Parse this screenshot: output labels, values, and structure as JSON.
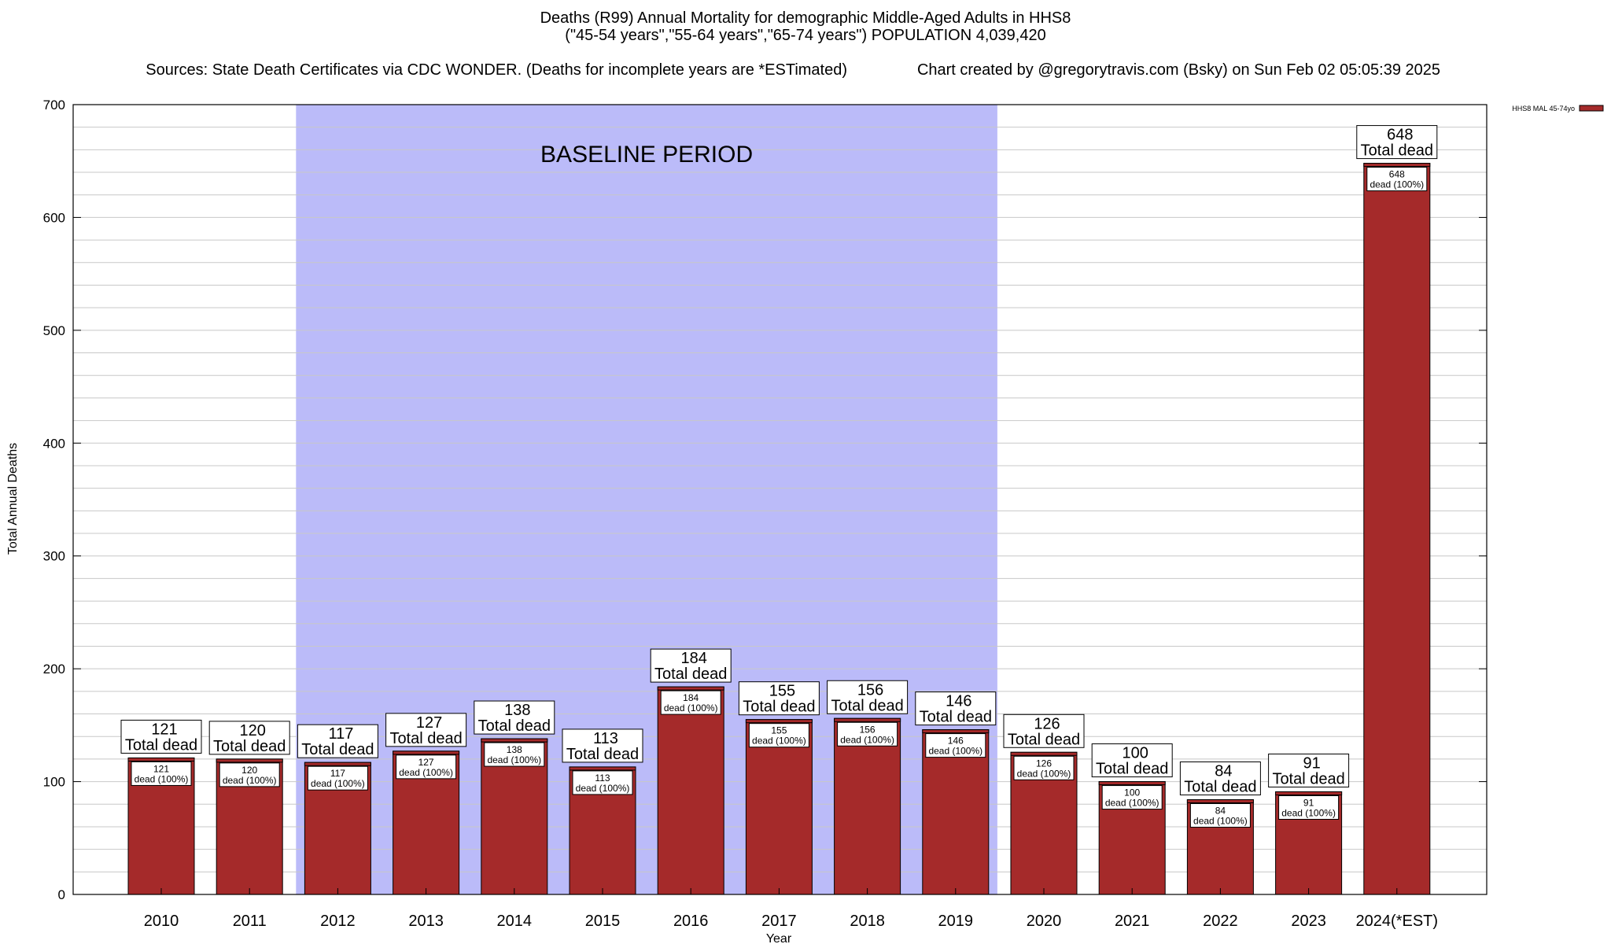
{
  "title": {
    "line1": "Deaths (R99) Annual Mortality for demographic Middle-Aged Adults in HHS8",
    "line2": "(\"45-54 years\",\"55-64 years\",\"65-74 years\") POPULATION 4,039,420",
    "sources": "Sources: State Death Certificates via CDC WONDER. (Deaths for incomplete years are *ESTimated)",
    "credit": "Chart created by @gregorytravis.com (Bsky) on Sun Feb 02 05:05:39 2025"
  },
  "colors": {
    "bar": "#a52a2a",
    "baseline_band": "#bbbbf9",
    "grid": "#c8c8c8"
  },
  "chart_data": {
    "type": "bar",
    "categories": [
      "2010",
      "2011",
      "2012",
      "2013",
      "2014",
      "2015",
      "2016",
      "2017",
      "2018",
      "2019",
      "2020",
      "2021",
      "2022",
      "2023",
      "2024(*EST)"
    ],
    "series": [
      {
        "name": "HHS8 MAL 45-74yo",
        "values": [
          121,
          120,
          117,
          127,
          138,
          113,
          184,
          155,
          156,
          146,
          126,
          100,
          84,
          91,
          648
        ]
      }
    ],
    "ylabel": "Total Annual Deaths",
    "xlabel": "Year",
    "ylim": [
      0,
      700
    ],
    "yticks": [
      0,
      100,
      200,
      300,
      400,
      500,
      600,
      700
    ],
    "grid": true,
    "legend_position": "top-right",
    "annotations": {
      "baseline_label": "BASELINE PERIOD",
      "baseline_range": [
        "2012",
        "2019"
      ],
      "total_suffix": "Total dead",
      "inner_suffix": "dead (100%)"
    }
  }
}
